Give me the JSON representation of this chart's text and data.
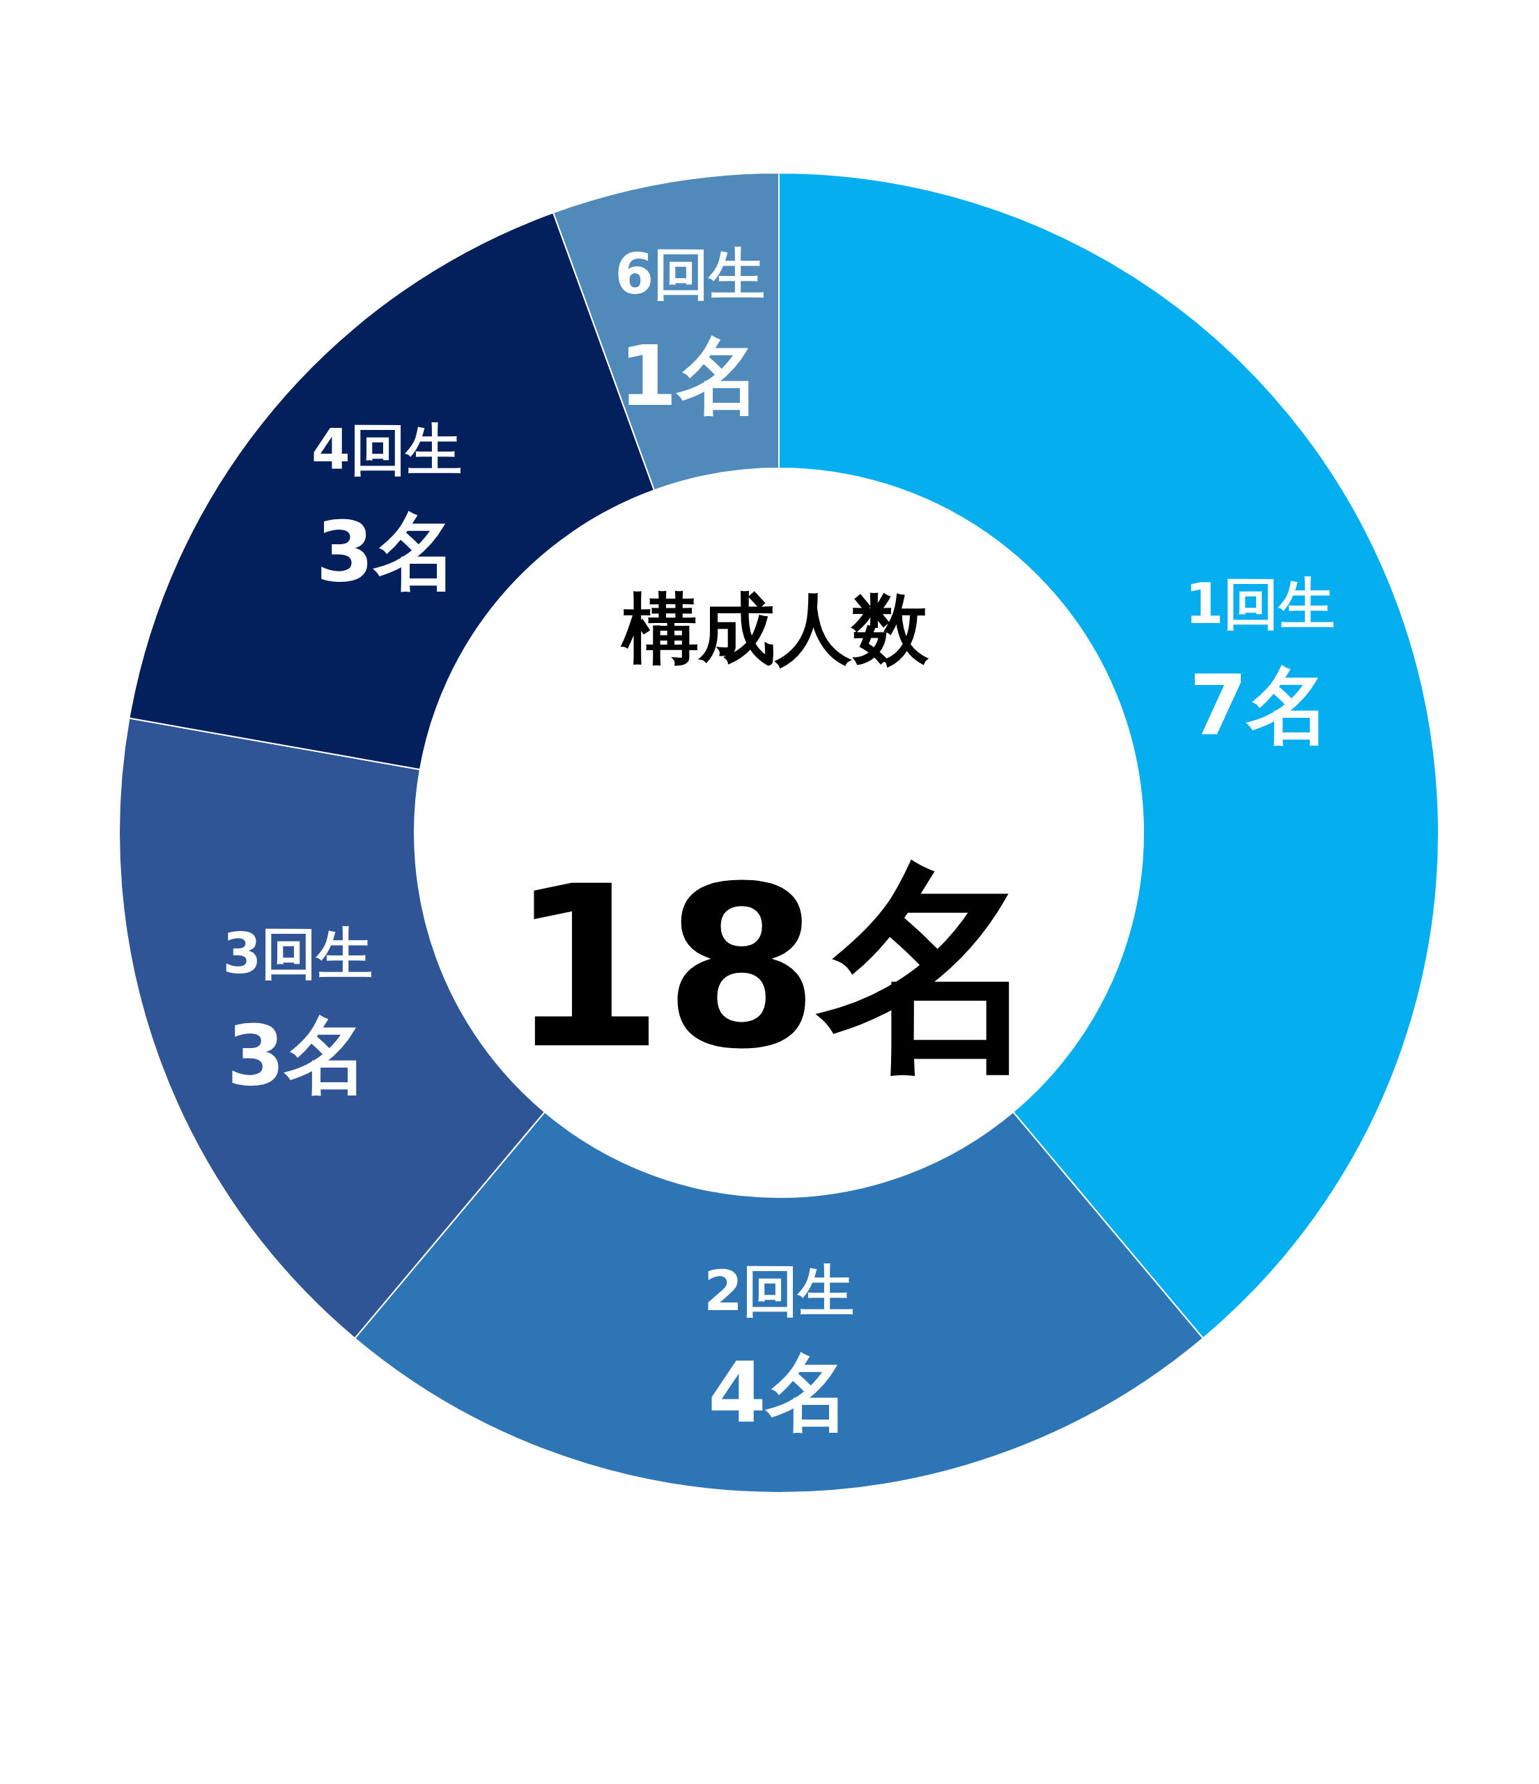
{
  "chart_data": {
    "type": "donut",
    "title": "構成人数",
    "annotations": [
      "18名"
    ],
    "categories": [
      "1回生",
      "2回生",
      "3回生",
      "4回生",
      "6回生"
    ],
    "values": [
      7,
      4,
      3,
      3,
      1
    ],
    "value_labels": [
      "7名",
      "4名",
      "3名",
      "3名",
      "1名"
    ],
    "colors": [
      "#04aeef",
      "#2e75b5",
      "#2f5597",
      "#03205c",
      "#4f8aba"
    ]
  }
}
